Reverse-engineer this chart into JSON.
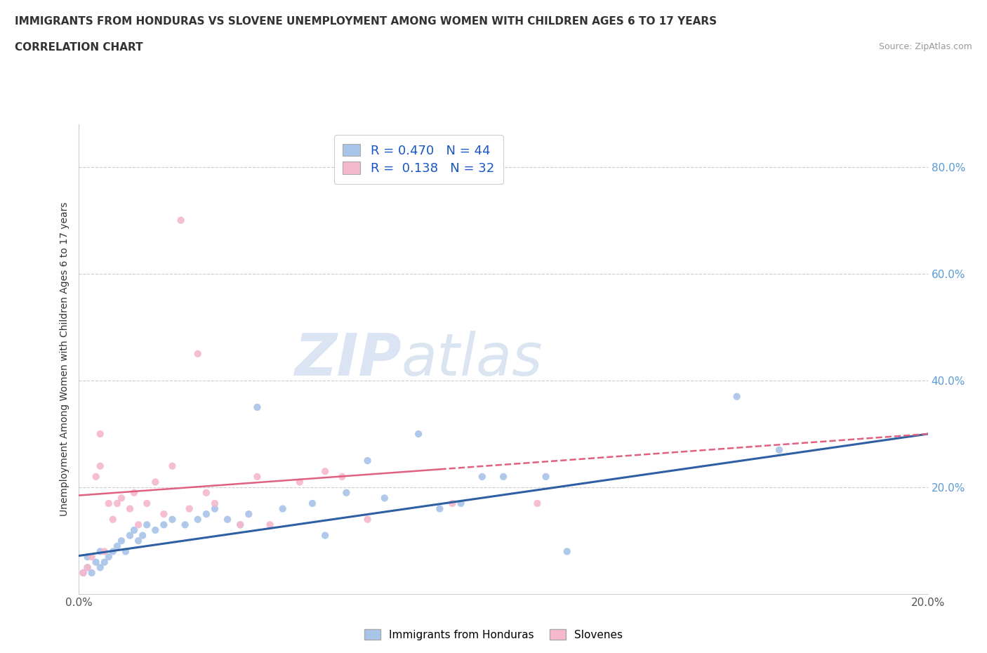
{
  "title": "IMMIGRANTS FROM HONDURAS VS SLOVENE UNEMPLOYMENT AMONG WOMEN WITH CHILDREN AGES 6 TO 17 YEARS",
  "subtitle": "CORRELATION CHART",
  "source": "Source: ZipAtlas.com",
  "ylabel": "Unemployment Among Women with Children Ages 6 to 17 years",
  "xlim": [
    0.0,
    0.2
  ],
  "ylim": [
    0.0,
    0.88
  ],
  "color_blue": "#a8c4e8",
  "color_pink": "#f5b8cc",
  "line_blue": "#2e5fa3",
  "line_pink": "#e06080",
  "watermark_color": "#ccd9ee",
  "blue_scatter": [
    [
      0.001,
      0.04
    ],
    [
      0.002,
      0.05
    ],
    [
      0.002,
      0.07
    ],
    [
      0.003,
      0.04
    ],
    [
      0.004,
      0.06
    ],
    [
      0.005,
      0.05
    ],
    [
      0.005,
      0.08
    ],
    [
      0.006,
      0.06
    ],
    [
      0.007,
      0.07
    ],
    [
      0.008,
      0.08
    ],
    [
      0.009,
      0.09
    ],
    [
      0.01,
      0.1
    ],
    [
      0.011,
      0.08
    ],
    [
      0.012,
      0.11
    ],
    [
      0.013,
      0.12
    ],
    [
      0.014,
      0.1
    ],
    [
      0.015,
      0.11
    ],
    [
      0.016,
      0.13
    ],
    [
      0.018,
      0.12
    ],
    [
      0.02,
      0.13
    ],
    [
      0.022,
      0.14
    ],
    [
      0.025,
      0.13
    ],
    [
      0.028,
      0.14
    ],
    [
      0.03,
      0.15
    ],
    [
      0.032,
      0.16
    ],
    [
      0.035,
      0.14
    ],
    [
      0.038,
      0.13
    ],
    [
      0.04,
      0.15
    ],
    [
      0.042,
      0.35
    ],
    [
      0.048,
      0.16
    ],
    [
      0.055,
      0.17
    ],
    [
      0.058,
      0.11
    ],
    [
      0.063,
      0.19
    ],
    [
      0.068,
      0.25
    ],
    [
      0.072,
      0.18
    ],
    [
      0.08,
      0.3
    ],
    [
      0.085,
      0.16
    ],
    [
      0.09,
      0.17
    ],
    [
      0.095,
      0.22
    ],
    [
      0.1,
      0.22
    ],
    [
      0.11,
      0.22
    ],
    [
      0.115,
      0.08
    ],
    [
      0.155,
      0.37
    ],
    [
      0.165,
      0.27
    ]
  ],
  "pink_scatter": [
    [
      0.001,
      0.04
    ],
    [
      0.002,
      0.05
    ],
    [
      0.003,
      0.07
    ],
    [
      0.004,
      0.22
    ],
    [
      0.005,
      0.3
    ],
    [
      0.005,
      0.24
    ],
    [
      0.006,
      0.08
    ],
    [
      0.007,
      0.17
    ],
    [
      0.008,
      0.14
    ],
    [
      0.009,
      0.17
    ],
    [
      0.01,
      0.18
    ],
    [
      0.012,
      0.16
    ],
    [
      0.013,
      0.19
    ],
    [
      0.014,
      0.13
    ],
    [
      0.016,
      0.17
    ],
    [
      0.018,
      0.21
    ],
    [
      0.02,
      0.15
    ],
    [
      0.022,
      0.24
    ],
    [
      0.024,
      0.7
    ],
    [
      0.026,
      0.16
    ],
    [
      0.028,
      0.45
    ],
    [
      0.03,
      0.19
    ],
    [
      0.032,
      0.17
    ],
    [
      0.038,
      0.13
    ],
    [
      0.042,
      0.22
    ],
    [
      0.045,
      0.13
    ],
    [
      0.052,
      0.21
    ],
    [
      0.058,
      0.23
    ],
    [
      0.062,
      0.22
    ],
    [
      0.068,
      0.14
    ],
    [
      0.088,
      0.17
    ],
    [
      0.108,
      0.17
    ]
  ],
  "blue_line": [
    [
      0.0,
      0.072
    ],
    [
      0.2,
      0.3
    ]
  ],
  "pink_line": [
    [
      0.0,
      0.185
    ],
    [
      0.2,
      0.3
    ]
  ],
  "pink_line_solid_end": 0.085,
  "legend1_text": "R = 0.470   N = 44",
  "legend2_text": "R =  0.138   N = 32",
  "bottom_legend": [
    "Immigrants from Honduras",
    "Slovenes"
  ]
}
